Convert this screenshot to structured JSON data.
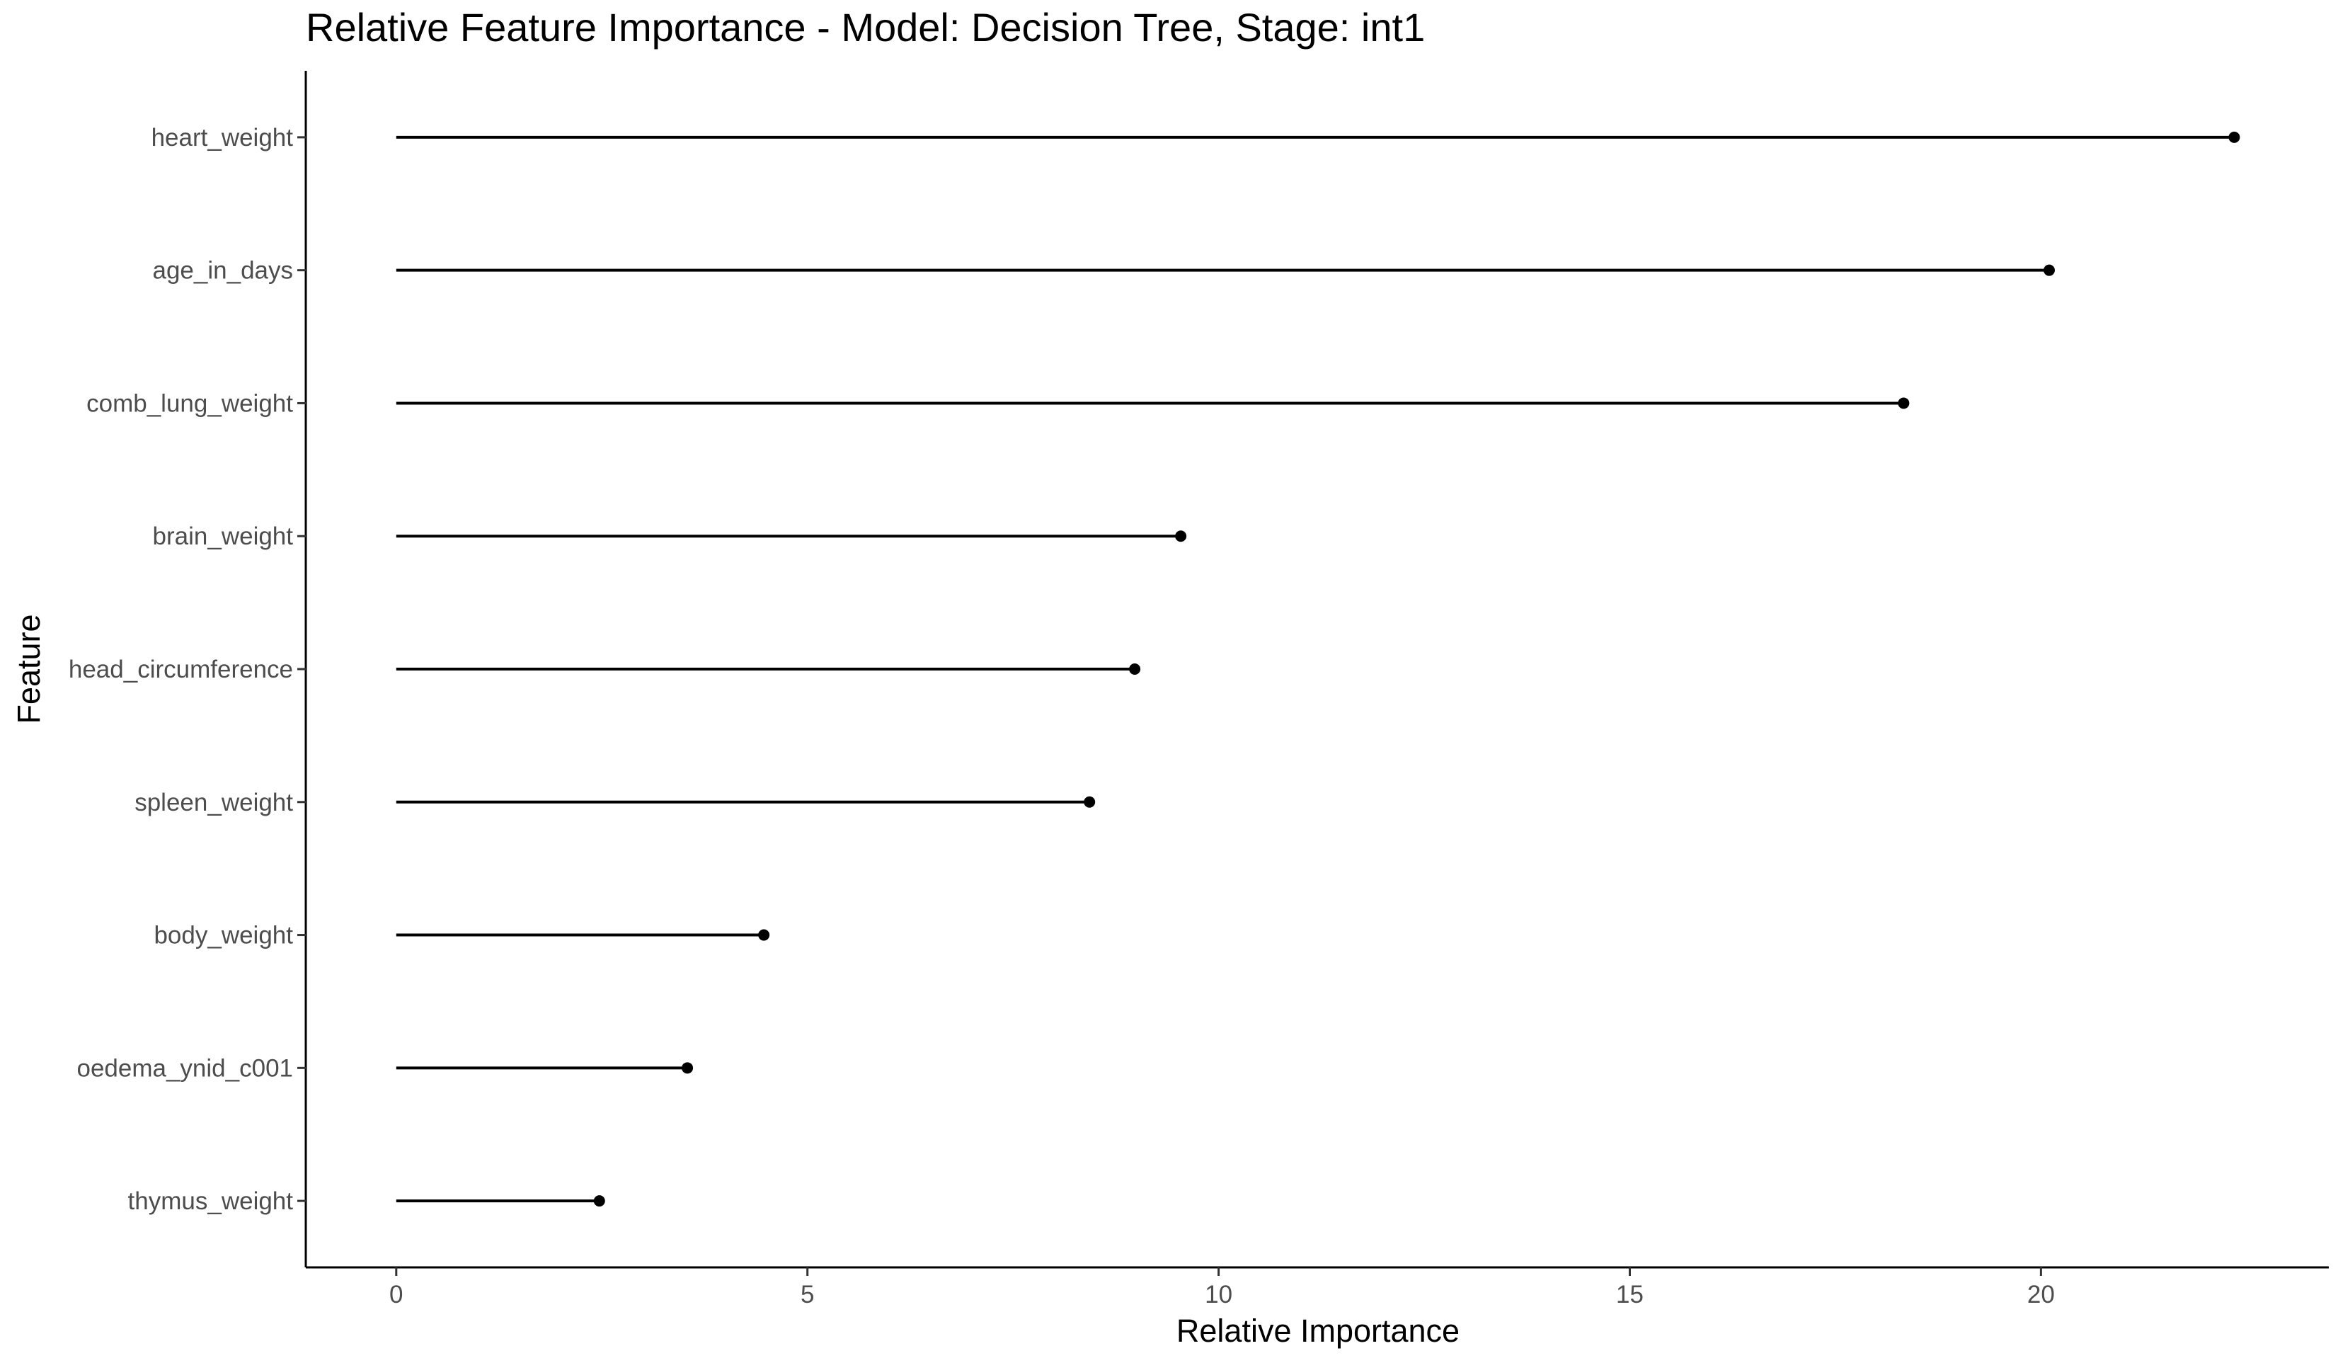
{
  "chart_data": {
    "type": "lollipop",
    "title": "Relative Feature Importance - Model: Decision Tree, Stage: int1",
    "xlabel": "Relative Importance",
    "ylabel": "Feature",
    "xlim": [
      -1.1,
      23.5
    ],
    "xticks": [
      0,
      5,
      10,
      15,
      20
    ],
    "categories": [
      "heart_weight",
      "age_in_days",
      "comb_lung_weight",
      "brain_weight",
      "head_circumference",
      "spleen_weight",
      "body_weight",
      "oedema_ynid_c001",
      "thymus_weight"
    ],
    "values": [
      22.35,
      20.1,
      18.33,
      9.54,
      8.98,
      8.43,
      4.47,
      3.54,
      2.47
    ],
    "grid": false,
    "legend": "none",
    "colors": {
      "line": "#000000",
      "tick_text": "#4d4d4d"
    }
  }
}
